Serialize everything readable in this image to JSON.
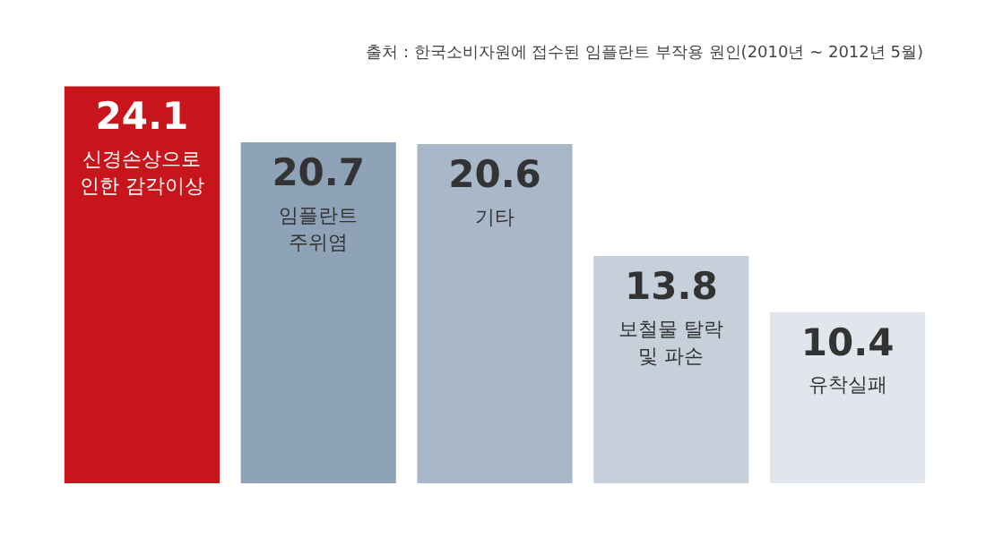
{
  "chart_data": {
    "type": "bar",
    "annotations": [
      "출처 : 한국소비자원에 접수된 임플란트 부작용 원인(2010년 ~ 2012년 5월)"
    ],
    "categories": [
      "신경손상으로 인한 감각이상",
      "임플란트 주위염",
      "기타",
      "보철물 탈락 및 파손",
      "유착실패"
    ],
    "values": [
      24.1,
      20.7,
      20.6,
      13.8,
      10.4
    ],
    "colors": [
      "#c8151b",
      "#8fa3b8",
      "#a9b8c8",
      "#c6d0db",
      "#e0e6ec"
    ],
    "data_labels": true
  }
}
